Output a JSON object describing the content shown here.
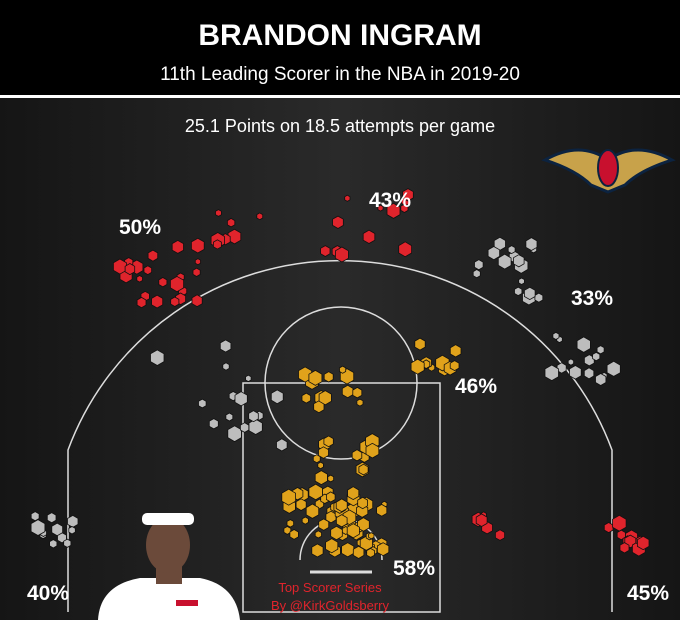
{
  "header": {
    "title": "BRANDON INGRAM",
    "subtitle": "11th Leading Scorer in the NBA in 2019-20"
  },
  "stat_line": "25.1 Points on 18.5 attempts per game",
  "zones": [
    {
      "label": "50%"
    },
    {
      "label": "43%"
    },
    {
      "label": "33%"
    },
    {
      "label": "46%"
    },
    {
      "label": "58%"
    },
    {
      "label": "40%"
    },
    {
      "label": "45%"
    }
  ],
  "credit": {
    "series": "Top Scorer Series",
    "author": "By @KirkGoldsberry"
  }
}
